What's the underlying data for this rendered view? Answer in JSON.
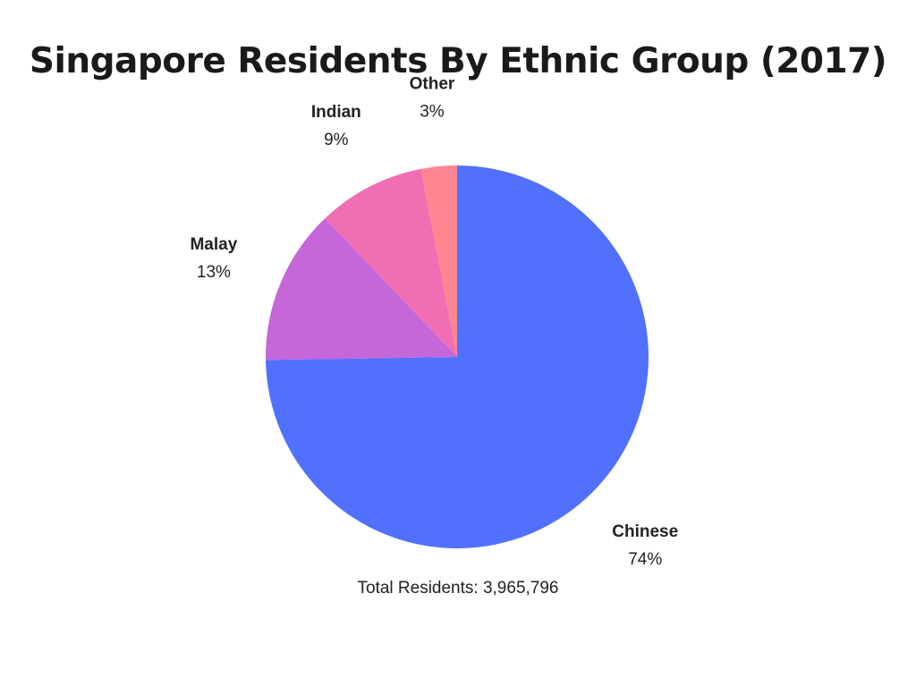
{
  "chart_data": {
    "type": "pie",
    "title": "Singapore Residents By Ethnic Group (2017)",
    "slices": [
      {
        "label": "Chinese",
        "value": 74,
        "value_label": "74%",
        "color": "#5170fd"
      },
      {
        "label": "Malay",
        "value": 13,
        "value_label": "13%",
        "color": "#c566d9"
      },
      {
        "label": "Indian",
        "value": 9,
        "value_label": "9%",
        "color": "#f26eb3"
      },
      {
        "label": "Other",
        "value": 3,
        "value_label": "3%",
        "color": "#ff8590"
      }
    ],
    "start": "12 o'clock",
    "direction": "clockwise",
    "annotation": "Total Residents: 3,965,796"
  }
}
